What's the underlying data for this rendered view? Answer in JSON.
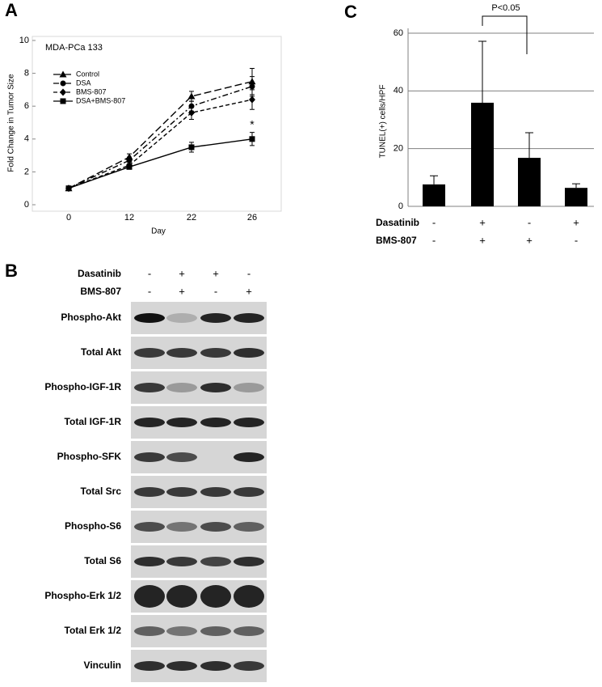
{
  "chart_data": [
    {
      "type": "line",
      "panel_label": "A",
      "title": "MDA-PCa 133",
      "x_label": "Day",
      "y_label": "Fold Change in Tumor Size",
      "categories": [
        "0",
        "12",
        "22",
        "26"
      ],
      "ylim": [
        0,
        10
      ],
      "yticks": [
        0,
        2,
        4,
        6,
        8,
        10
      ],
      "series": [
        {
          "name": "Control",
          "color": "#000000",
          "marker": "triangle",
          "dash": "9,4",
          "values": [
            1,
            2.9,
            6.6,
            7.5
          ],
          "errors": [
            0.1,
            0.2,
            0.3,
            0.8
          ]
        },
        {
          "name": "DSA",
          "color": "#000000",
          "marker": "circle",
          "dash": "7,3,2,3",
          "values": [
            1,
            2.7,
            6.0,
            7.2
          ],
          "errors": [
            0.1,
            0.2,
            0.3,
            0.6
          ]
        },
        {
          "name": "BMS-807",
          "color": "#000000",
          "marker": "diamond",
          "dash": "5,3",
          "values": [
            1,
            2.4,
            5.6,
            6.4
          ],
          "errors": [
            0.1,
            0.2,
            0.4,
            0.6
          ]
        },
        {
          "name": "DSA+BMS-807",
          "color": "#000000",
          "marker": "square",
          "dash": "",
          "values": [
            1,
            2.3,
            3.5,
            4.0
          ],
          "errors": [
            0.1,
            0.1,
            0.3,
            0.4
          ]
        }
      ],
      "annotation": "*"
    },
    {
      "type": "bar",
      "panel_label": "C",
      "y_label": "TUNEL(+) cells/HPF",
      "color": "#000000",
      "condition_rows": [
        {
          "name": "Dasatinib",
          "labels": [
            "-",
            "+",
            "-",
            "+"
          ]
        },
        {
          "name": "BMS-807",
          "labels": [
            "-",
            "+",
            "+",
            "-"
          ]
        }
      ],
      "values": [
        7.6,
        35.9,
        16.8,
        6.4
      ],
      "errors": [
        3.0,
        21.3,
        8.7,
        1.4
      ],
      "ylim": [
        0,
        60
      ],
      "yticks": [
        0,
        20,
        40,
        60
      ],
      "grid": true,
      "annotation": "P<0.05"
    }
  ],
  "blot": {
    "panel_label": "B",
    "treatments": [
      {
        "name": "Dasatinib",
        "labels": [
          "-",
          "+",
          "+",
          "-"
        ]
      },
      {
        "name": "BMS-807",
        "labels": [
          "-",
          "+",
          "-",
          "+"
        ]
      }
    ],
    "rows": [
      "Phospho-Akt",
      "Total Akt",
      "Phospho-IGF-1R",
      "Total IGF-1R",
      "Phospho-SFK",
      "Total Src",
      "Phospho-S6",
      "Total S6",
      "Phospho-Erk  1/2",
      "Total Erk 1/2",
      "Vinculin"
    ]
  }
}
